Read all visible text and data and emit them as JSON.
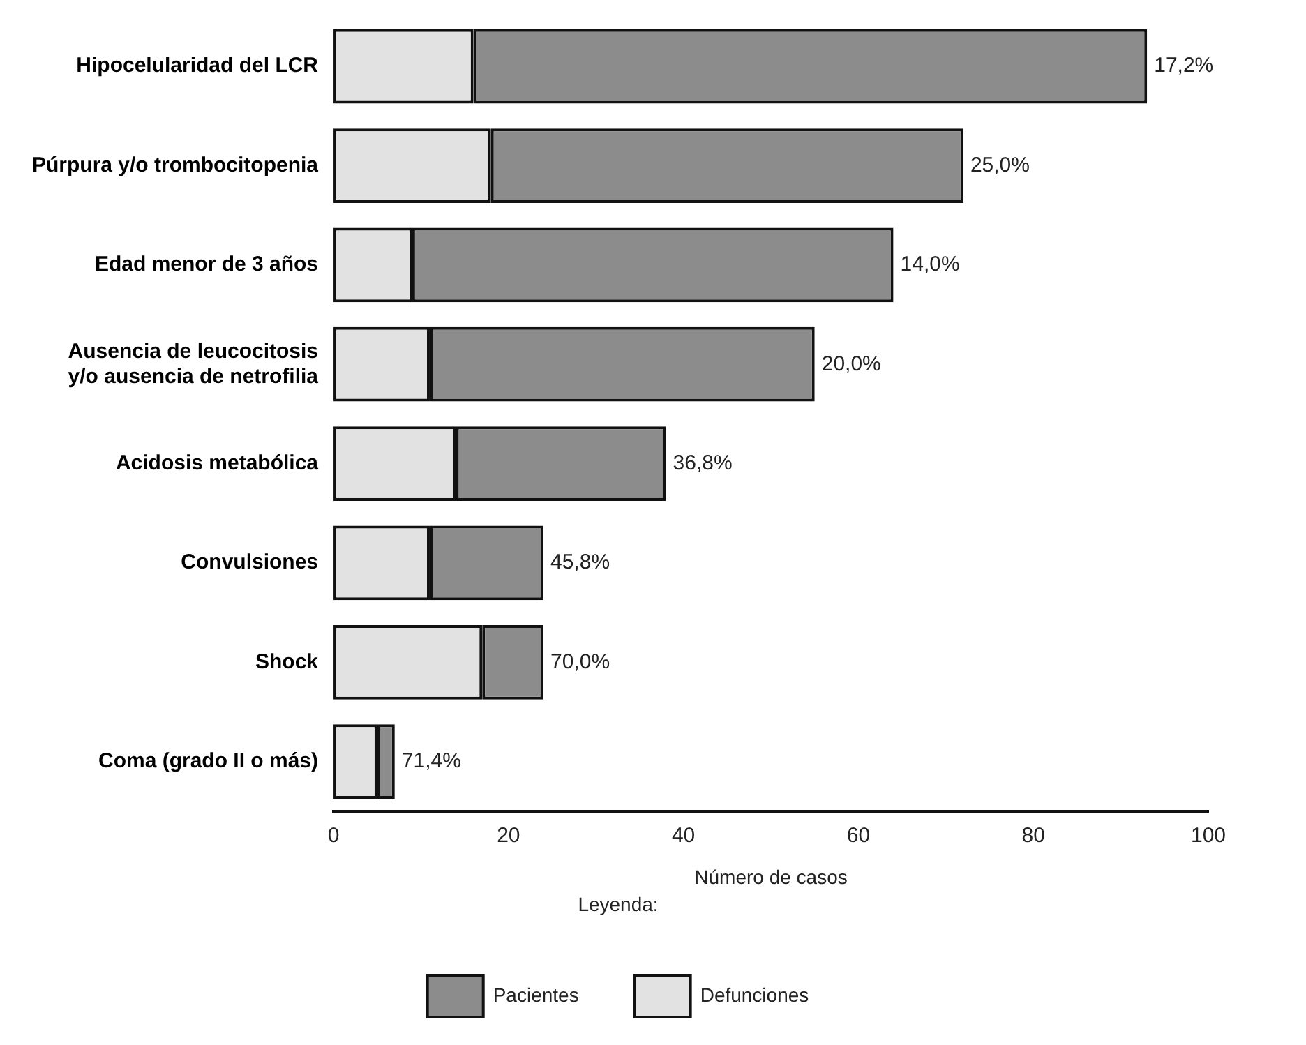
{
  "chart_data": {
    "type": "bar",
    "orientation": "horizontal",
    "stacked": true,
    "categories": [
      "Hipocelularidad del LCR",
      "Púrpura y/o trombocitopenia",
      "Edad menor de 3 años",
      "Ausencia de leucocitosis y/o ausencia de netrofilia",
      "Acidosis metabólica",
      "Convulsiones",
      "Shock",
      "Coma (grado II o más)"
    ],
    "series": [
      {
        "name": "Defunciones",
        "color": "#e2e2e2",
        "values": [
          16,
          18,
          9,
          11,
          14,
          11,
          17,
          5
        ]
      },
      {
        "name": "Pacientes",
        "color": "#8c8c8c",
        "values": [
          77,
          54,
          55,
          44,
          24,
          13,
          7,
          2
        ]
      }
    ],
    "xlim": [
      0,
      100
    ],
    "xticks": [
      0,
      20,
      40,
      60,
      80,
      100
    ],
    "xlabel": "Número de casos",
    "legend": "bottom",
    "legend_title": "Leyenda:",
    "grid": false,
    "annotations": [
      {
        "text": "17,2%",
        "x": 93,
        "y": "Hipocelularidad del LCR"
      },
      {
        "text": "25,0%",
        "x": 72,
        "y": "Púrpura y/o trombocitopenia"
      },
      {
        "text": "14,0%",
        "x": 64,
        "y": "Edad menor de 3 años"
      },
      {
        "text": "20,0%",
        "x": 55,
        "y": "Ausencia de leucocitosis y/o ausencia de netrofilia"
      },
      {
        "text": "36,8%",
        "x": 38,
        "y": "Acidosis metabólica"
      },
      {
        "text": "45,8%",
        "x": 24,
        "y": "Convulsiones"
      },
      {
        "text": "70,0%",
        "x": 24,
        "y": "Shock"
      },
      {
        "text": "71,4%",
        "x": 7,
        "y": "Coma (grado II o más)"
      }
    ]
  }
}
